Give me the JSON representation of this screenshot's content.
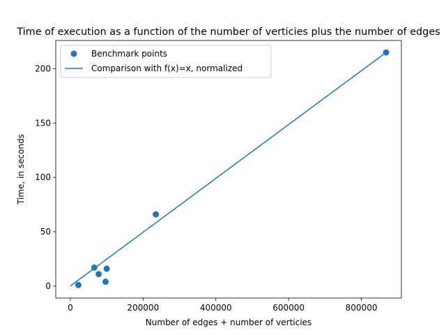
{
  "chart_data": {
    "type": "scatter",
    "title": "Time of execution as a function of the number of verticies plus the number of edges",
    "xlabel": "Number of edges + number of verticies",
    "ylabel": "Time, in seconds",
    "xlim": [
      -40000,
      910000
    ],
    "ylim": [
      -11,
      226
    ],
    "xticks": [
      0,
      200000,
      400000,
      600000,
      800000
    ],
    "yticks": [
      0,
      50,
      100,
      150,
      200
    ],
    "grid": false,
    "legend_position": "top-left",
    "colors": {
      "series": "#1f77b4",
      "axes": "#000000"
    },
    "series": [
      {
        "name": "Benchmark points",
        "kind": "scatter",
        "points": [
          {
            "x": 22000,
            "y": 1
          },
          {
            "x": 66000,
            "y": 17
          },
          {
            "x": 78000,
            "y": 11
          },
          {
            "x": 97000,
            "y": 4
          },
          {
            "x": 100000,
            "y": 16
          },
          {
            "x": 235000,
            "y": 66
          },
          {
            "x": 868000,
            "y": 215
          }
        ]
      },
      {
        "name": "Comparison with f(x)=x, normalized",
        "kind": "line",
        "points": [
          {
            "x": 0,
            "y": 0
          },
          {
            "x": 868000,
            "y": 215
          }
        ]
      }
    ]
  }
}
